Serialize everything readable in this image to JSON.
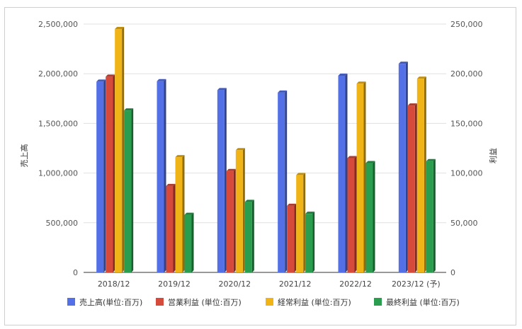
{
  "chart_data": {
    "type": "bar",
    "title": "",
    "categories": [
      "2018/12",
      "2019/12",
      "2020/12",
      "2021/12",
      "2022/12",
      "2023/12 (予)"
    ],
    "left_axis": {
      "label": "売上高",
      "range": [
        0,
        2500000
      ],
      "ticks": [
        "0",
        "500,000",
        "1,000,000",
        "1,500,000",
        "2,000,000",
        "2,500,000"
      ]
    },
    "right_axis": {
      "label": "利益",
      "range": [
        0,
        250000
      ],
      "ticks": [
        "0",
        "50,000",
        "100,000",
        "150,000",
        "200,000",
        "250,000"
      ]
    },
    "grid": true,
    "legend_position": "bottom",
    "series": [
      {
        "name": "売上高(単位:百万)",
        "axis": "left",
        "color": "#5470e6",
        "values": [
          1920000,
          1925000,
          1835000,
          1810000,
          1980000,
          2100000
        ]
      },
      {
        "name": "営業利益 (単位:百万)",
        "axis": "right",
        "color": "#d64a3b",
        "values": [
          197000,
          87000,
          102000,
          67000,
          115000,
          168000
        ]
      },
      {
        "name": "経常利益 (単位:百万)",
        "axis": "right",
        "color": "#f0b416",
        "values": [
          245000,
          116000,
          123000,
          98000,
          190000,
          195000
        ]
      },
      {
        "name": "最終利益 (単位:百万)",
        "axis": "right",
        "color": "#2a9d4f",
        "values": [
          163000,
          58000,
          71000,
          59000,
          110000,
          112000
        ]
      }
    ]
  }
}
